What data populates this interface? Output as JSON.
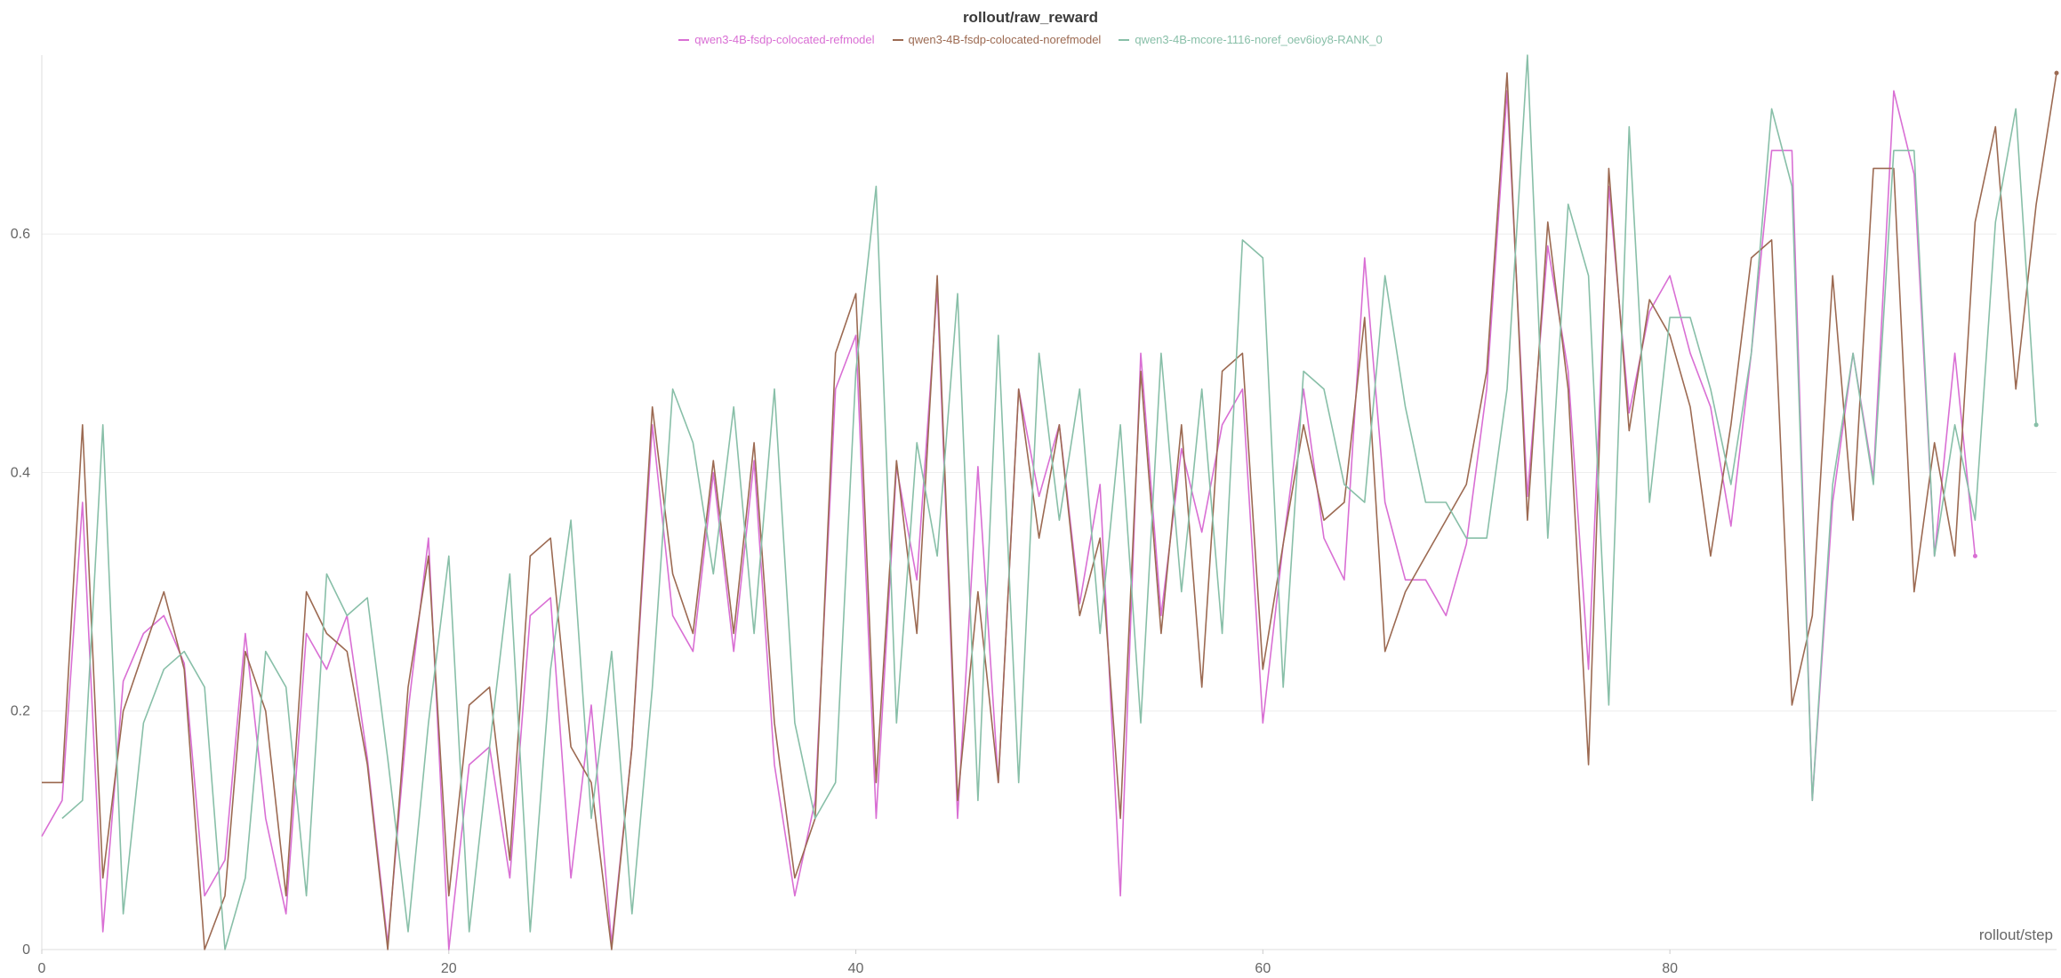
{
  "chart_data": {
    "type": "line",
    "title": "rollout/raw_reward",
    "xlabel": "rollout/step",
    "ylabel": "",
    "xlim": [
      0,
      99
    ],
    "ylim": [
      0,
      0.75
    ],
    "xticks": [
      0,
      20,
      40,
      60,
      80
    ],
    "yticks": [
      0,
      0.2,
      0.4,
      0.6
    ],
    "grid": true,
    "legend_position": "top-center",
    "series": [
      {
        "name": "qwen3-4B-fsdp-colocated-refmodel",
        "color": "#d96fd4",
        "x": [
          0,
          1,
          2,
          3,
          4,
          5,
          6,
          7,
          8,
          9,
          10,
          11,
          12,
          13,
          14,
          15,
          16,
          17,
          18,
          19,
          20,
          21,
          22,
          23,
          24,
          25,
          26,
          27,
          28,
          29,
          30,
          31,
          32,
          33,
          34,
          35,
          36,
          37,
          38,
          39,
          40,
          41,
          42,
          43,
          44,
          45,
          46,
          47,
          48,
          49,
          50,
          51,
          52,
          53,
          54,
          55,
          56,
          57,
          58,
          59,
          60,
          61,
          62,
          63,
          64,
          65,
          66,
          67,
          68,
          69,
          70,
          71,
          72,
          73,
          74,
          75,
          76,
          77,
          78,
          79,
          80,
          81,
          82,
          83,
          84,
          85,
          86,
          87,
          88,
          89,
          90,
          91,
          92,
          93,
          94,
          95
        ],
        "y": [
          0.095,
          0.125,
          0.375,
          0.015,
          0.225,
          0.265,
          0.28,
          0.24,
          0.045,
          0.075,
          0.265,
          0.11,
          0.03,
          0.265,
          0.235,
          0.28,
          0.16,
          0.005,
          0.2,
          0.345,
          0.0,
          0.155,
          0.17,
          0.06,
          0.28,
          0.295,
          0.06,
          0.205,
          0.005,
          0.17,
          0.44,
          0.28,
          0.25,
          0.4,
          0.25,
          0.41,
          0.155,
          0.045,
          0.125,
          0.47,
          0.515,
          0.11,
          0.405,
          0.31,
          0.555,
          0.11,
          0.405,
          0.14,
          0.47,
          0.38,
          0.44,
          0.29,
          0.39,
          0.045,
          0.5,
          0.28,
          0.42,
          0.35,
          0.44,
          0.47,
          0.19,
          0.34,
          0.47,
          0.345,
          0.31,
          0.58,
          0.375,
          0.31,
          0.31,
          0.28,
          0.34,
          0.47,
          0.72,
          0.38,
          0.59,
          0.485,
          0.235,
          0.64,
          0.45,
          0.535,
          0.565,
          0.5,
          0.455,
          0.355,
          0.5,
          0.67,
          0.67,
          0.125,
          0.375,
          0.5,
          0.395,
          0.72,
          0.65,
          0.33,
          0.5,
          0.33
        ]
      },
      {
        "name": "qwen3-4B-fsdp-colocated-norefmodel",
        "color": "#9c6a52",
        "x": [
          0,
          1,
          2,
          3,
          4,
          5,
          6,
          7,
          8,
          9,
          10,
          11,
          12,
          13,
          14,
          15,
          16,
          17,
          18,
          19,
          20,
          21,
          22,
          23,
          24,
          25,
          26,
          27,
          28,
          29,
          30,
          31,
          32,
          33,
          34,
          35,
          36,
          37,
          38,
          39,
          40,
          41,
          42,
          43,
          44,
          45,
          46,
          47,
          48,
          49,
          50,
          51,
          52,
          53,
          54,
          55,
          56,
          57,
          58,
          59,
          60,
          61,
          62,
          63,
          64,
          65,
          66,
          67,
          68,
          69,
          70,
          71,
          72,
          73,
          74,
          75,
          76,
          77,
          78,
          79,
          80,
          81,
          82,
          83,
          84,
          85,
          86,
          87,
          88,
          89,
          90,
          91,
          92,
          93,
          94,
          95,
          96,
          97,
          98,
          99
        ],
        "y": [
          0.14,
          0.14,
          0.44,
          0.06,
          0.2,
          0.25,
          0.3,
          0.235,
          0.0,
          0.045,
          0.25,
          0.2,
          0.045,
          0.3,
          0.265,
          0.25,
          0.155,
          0.0,
          0.22,
          0.33,
          0.045,
          0.205,
          0.22,
          0.075,
          0.33,
          0.345,
          0.17,
          0.14,
          0.0,
          0.17,
          0.455,
          0.315,
          0.265,
          0.41,
          0.265,
          0.425,
          0.19,
          0.06,
          0.11,
          0.5,
          0.55,
          0.14,
          0.41,
          0.265,
          0.565,
          0.125,
          0.3,
          0.14,
          0.47,
          0.345,
          0.44,
          0.28,
          0.345,
          0.11,
          0.485,
          0.265,
          0.44,
          0.22,
          0.485,
          0.5,
          0.235,
          0.34,
          0.44,
          0.36,
          0.375,
          0.53,
          0.25,
          0.3,
          0.33,
          0.36,
          0.39,
          0.485,
          0.735,
          0.36,
          0.61,
          0.47,
          0.155,
          0.655,
          0.435,
          0.545,
          0.515,
          0.455,
          0.33,
          0.44,
          0.58,
          0.595,
          0.205,
          0.28,
          0.565,
          0.36,
          0.655,
          0.655,
          0.3,
          0.425,
          0.33,
          0.61,
          0.69,
          0.47,
          0.625,
          0.735
        ]
      },
      {
        "name": "qwen3-4B-mcore-1116-noref_oev6ioy8-RANK_0",
        "color": "#88bfa8",
        "x": [
          1,
          2,
          3,
          4,
          5,
          6,
          7,
          8,
          9,
          10,
          11,
          12,
          13,
          14,
          15,
          16,
          17,
          18,
          19,
          20,
          21,
          22,
          23,
          24,
          25,
          26,
          27,
          28,
          29,
          30,
          31,
          32,
          33,
          34,
          35,
          36,
          37,
          38,
          39,
          40,
          41,
          42,
          43,
          44,
          45,
          46,
          47,
          48,
          49,
          50,
          51,
          52,
          53,
          54,
          55,
          56,
          57,
          58,
          59,
          60,
          61,
          62,
          63,
          64,
          65,
          66,
          67,
          68,
          69,
          70,
          71,
          72,
          73,
          74,
          75,
          76,
          77,
          78,
          79,
          80,
          81,
          82,
          83,
          84,
          85,
          86,
          87,
          88,
          89,
          90,
          91,
          92,
          93,
          94,
          95,
          96,
          97,
          98
        ],
        "y": [
          0.11,
          0.125,
          0.44,
          0.03,
          0.19,
          0.235,
          0.25,
          0.22,
          0.0,
          0.06,
          0.25,
          0.22,
          0.045,
          0.315,
          0.28,
          0.295,
          0.16,
          0.015,
          0.19,
          0.33,
          0.015,
          0.17,
          0.315,
          0.015,
          0.235,
          0.36,
          0.11,
          0.25,
          0.03,
          0.22,
          0.47,
          0.425,
          0.315,
          0.455,
          0.265,
          0.47,
          0.19,
          0.11,
          0.14,
          0.485,
          0.64,
          0.19,
          0.425,
          0.33,
          0.55,
          0.125,
          0.515,
          0.14,
          0.5,
          0.36,
          0.47,
          0.265,
          0.44,
          0.19,
          0.5,
          0.3,
          0.47,
          0.265,
          0.595,
          0.58,
          0.22,
          0.485,
          0.47,
          0.39,
          0.375,
          0.565,
          0.455,
          0.375,
          0.375,
          0.345,
          0.345,
          0.47,
          0.75,
          0.345,
          0.625,
          0.565,
          0.205,
          0.69,
          0.375,
          0.53,
          0.53,
          0.47,
          0.39,
          0.5,
          0.705,
          0.64,
          0.125,
          0.39,
          0.5,
          0.39,
          0.67,
          0.67,
          0.33,
          0.44,
          0.36,
          0.61,
          0.705,
          0.44
        ]
      }
    ]
  }
}
